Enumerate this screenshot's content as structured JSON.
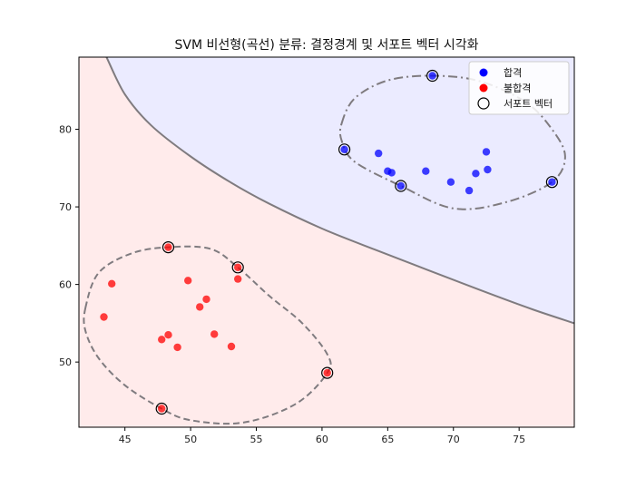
{
  "chart_data": {
    "type": "scatter",
    "title": "SVM 비선형(곡선) 분류: 결정경계 및 서포트 벡터 시각화",
    "xlabel": "",
    "ylabel": "",
    "xlim": [
      41.5,
      79.2
    ],
    "ylim": [
      41.6,
      89.3
    ],
    "xticks": [
      45,
      50,
      55,
      60,
      65,
      70,
      75
    ],
    "yticks": [
      50,
      60,
      70,
      80
    ],
    "grid": false,
    "legend_position": "top-right",
    "colors": {
      "pass": "#0000ff",
      "fail": "#ff0000",
      "pass_region": "#ebebff",
      "fail_region": "#ffebeb",
      "boundary": "#7f7b7f"
    },
    "series": [
      {
        "name": "합격",
        "color": "#0000ff",
        "points": [
          [
            68.4,
            86.9
          ],
          [
            61.7,
            77.4
          ],
          [
            64.3,
            76.9
          ],
          [
            65.0,
            74.6
          ],
          [
            65.3,
            74.4
          ],
          [
            66.0,
            72.7
          ],
          [
            67.9,
            74.6
          ],
          [
            69.8,
            73.2
          ],
          [
            71.2,
            72.1
          ],
          [
            71.7,
            74.3
          ],
          [
            72.5,
            77.1
          ],
          [
            72.6,
            74.8
          ],
          [
            77.5,
            73.2
          ]
        ]
      },
      {
        "name": "불합격",
        "color": "#ff0000",
        "points": [
          [
            48.3,
            64.8
          ],
          [
            44.0,
            60.1
          ],
          [
            43.4,
            55.8
          ],
          [
            49.8,
            60.5
          ],
          [
            53.6,
            62.2
          ],
          [
            53.6,
            60.7
          ],
          [
            51.2,
            58.1
          ],
          [
            50.7,
            57.1
          ],
          [
            48.3,
            53.5
          ],
          [
            47.8,
            52.9
          ],
          [
            49.0,
            51.9
          ],
          [
            51.8,
            53.6
          ],
          [
            53.1,
            52.0
          ],
          [
            60.4,
            48.6
          ],
          [
            47.8,
            44.0
          ]
        ]
      }
    ],
    "support_vectors": {
      "name": "서포트 벡터",
      "points": [
        [
          68.4,
          86.9
        ],
        [
          61.7,
          77.4
        ],
        [
          66.0,
          72.7
        ],
        [
          77.5,
          73.2
        ],
        [
          48.3,
          64.8
        ],
        [
          53.6,
          62.2
        ],
        [
          60.4,
          48.6
        ],
        [
          47.8,
          44.0
        ]
      ]
    },
    "decision_boundary": [
      [
        43.6,
        89.3
      ],
      [
        45,
        84.5
      ],
      [
        47,
        80.5
      ],
      [
        50,
        76.5
      ],
      [
        53,
        73.2
      ],
      [
        56,
        70.4
      ],
      [
        60,
        67.2
      ],
      [
        64,
        64.5
      ],
      [
        68,
        61.9
      ],
      [
        72,
        59.3
      ],
      [
        76,
        56.8
      ],
      [
        79.2,
        55.0
      ]
    ],
    "margins": [
      {
        "class": "합격",
        "style": "dash-dot",
        "points": [
          [
            61.5,
            80.8
          ],
          [
            62.5,
            84.0
          ],
          [
            65.0,
            86.3
          ],
          [
            68.4,
            86.9
          ],
          [
            72.0,
            86.2
          ],
          [
            75.5,
            83.5
          ],
          [
            77.5,
            80.0
          ],
          [
            78.5,
            76.5
          ],
          [
            77.5,
            73.2
          ],
          [
            74.0,
            70.6
          ],
          [
            70.0,
            69.8
          ],
          [
            66.0,
            72.7
          ],
          [
            62.5,
            75.8
          ],
          [
            61.5,
            78.5
          ],
          [
            61.5,
            80.8
          ]
        ]
      },
      {
        "class": "불합격",
        "style": "dashed",
        "points": [
          [
            42.0,
            57.0
          ],
          [
            43.0,
            61.5
          ],
          [
            45.5,
            64.0
          ],
          [
            48.3,
            64.8
          ],
          [
            51.5,
            64.6
          ],
          [
            53.6,
            62.2
          ],
          [
            56.0,
            58.5
          ],
          [
            58.5,
            55.0
          ],
          [
            60.4,
            51.0
          ],
          [
            60.4,
            48.6
          ],
          [
            58.0,
            44.6
          ],
          [
            54.0,
            42.2
          ],
          [
            50.0,
            42.5
          ],
          [
            47.8,
            44.0
          ],
          [
            45.0,
            47.0
          ],
          [
            43.0,
            50.5
          ],
          [
            42.0,
            54.0
          ],
          [
            42.0,
            57.0
          ]
        ]
      }
    ]
  }
}
